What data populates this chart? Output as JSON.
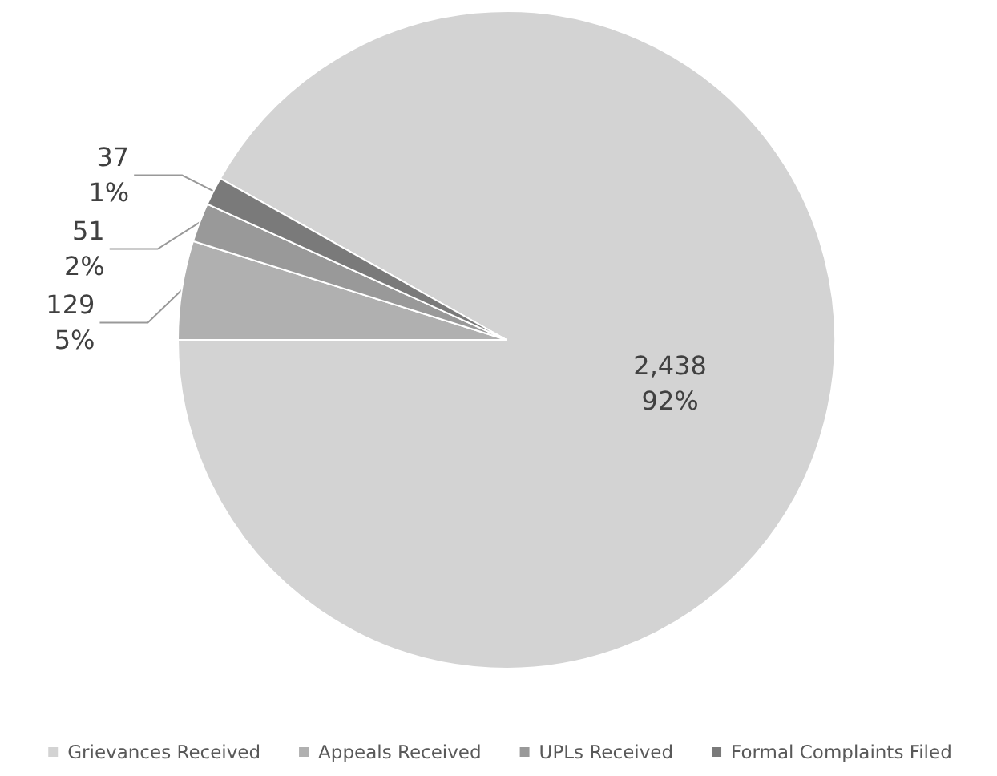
{
  "chart_data": {
    "type": "pie",
    "categories": [
      "Grievances Received",
      "Appeals Received",
      "UPLs Received",
      "Formal Complaints Filed"
    ],
    "values": [
      2438,
      129,
      51,
      37
    ],
    "colors": [
      "#d3d3d3",
      "#b0b0b0",
      "#999999",
      "#7a7a7a"
    ],
    "value_labels": [
      "2,438\n92%",
      "129\n5%",
      "51\n2%",
      "37\n1%"
    ],
    "legend": "bottom"
  }
}
